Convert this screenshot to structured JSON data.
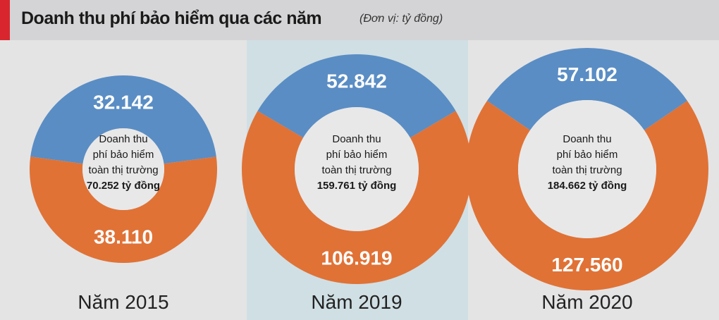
{
  "header": {
    "title": "Doanh thu phí bảo hiểm qua các năm",
    "unit": "(Đơn vị: tỷ đồng)"
  },
  "colors": {
    "blue_segment": "#5a8dc4",
    "orange_segment": "#e07236",
    "accent": "#d9262e",
    "highlight_column": "#d0dfe4"
  },
  "chart_data": [
    {
      "type": "pie",
      "title": "Năm 2015",
      "center_lines": [
        "Doanh thu",
        "phí bảo hiểm",
        "toàn thị trường"
      ],
      "total_label": "70.252 tỷ đồng",
      "total": 70252,
      "categories": [
        "",
        ""
      ],
      "values": [
        32142,
        38110
      ],
      "labels": [
        "32.142",
        "38.110"
      ]
    },
    {
      "type": "pie",
      "title": "Năm 2019",
      "center_lines": [
        "Doanh thu",
        "phí bảo hiểm",
        "toàn thị trường"
      ],
      "total_label": "159.761 tỷ đồng",
      "total": 159761,
      "categories": [
        "",
        ""
      ],
      "values": [
        52842,
        106919
      ],
      "labels": [
        "52.842",
        "106.919"
      ]
    },
    {
      "type": "pie",
      "title": "Năm 2020",
      "center_lines": [
        "Doanh thu",
        "phí bảo hiểm",
        "toàn thị trường"
      ],
      "total_label": "184.662 tỷ đồng",
      "total": 184662,
      "categories": [
        "",
        ""
      ],
      "values": [
        57102,
        127560
      ],
      "labels": [
        "57.102",
        "127.560"
      ]
    }
  ]
}
